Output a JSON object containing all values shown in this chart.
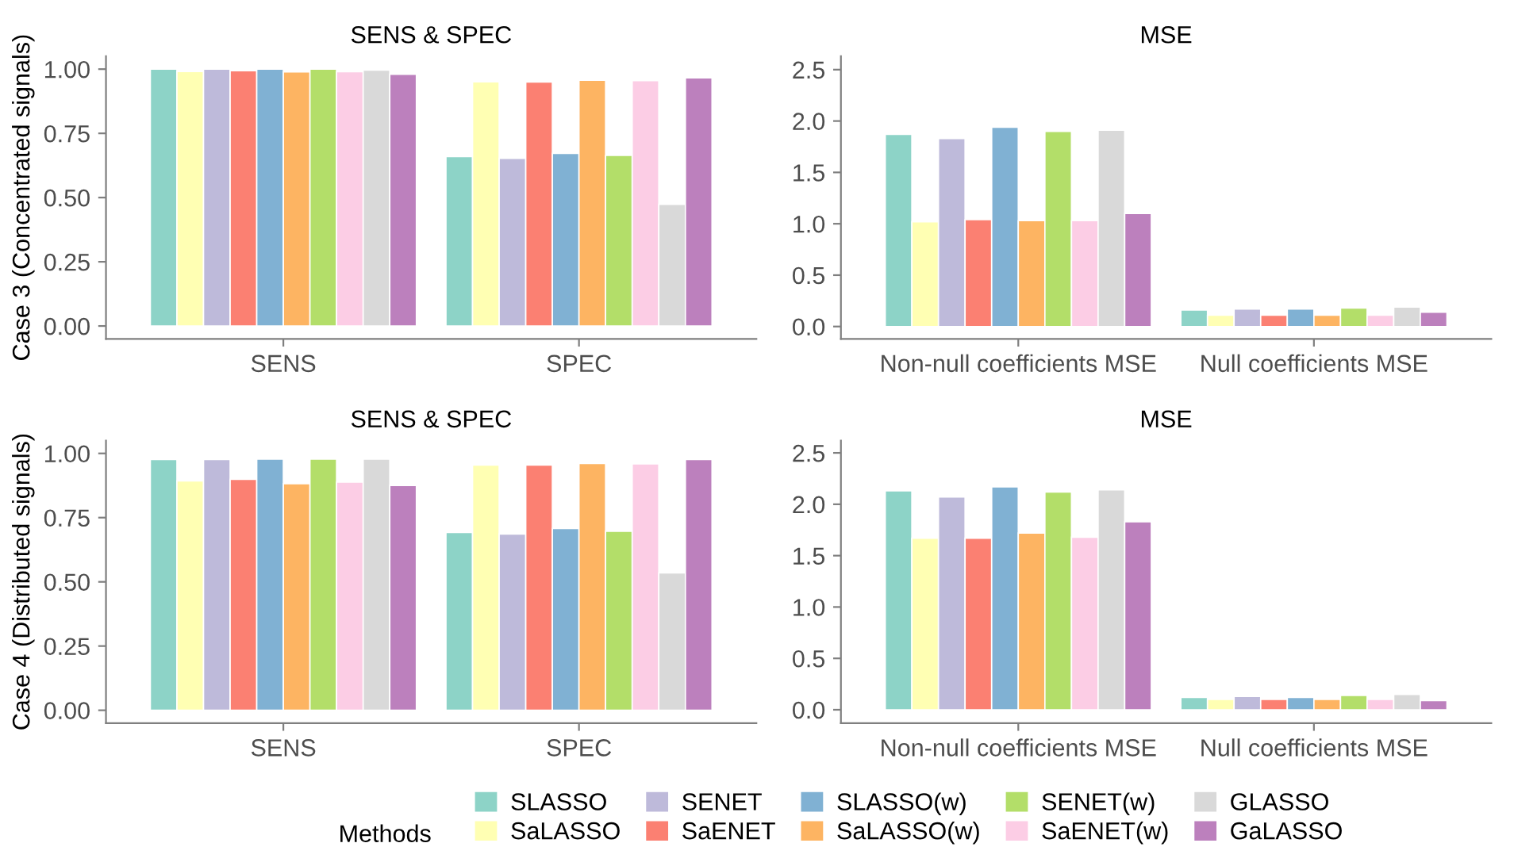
{
  "chart_data": [
    {
      "type": "bar",
      "title": "SENS & SPEC",
      "ylabel": "Case 3 (Concentrated signals)",
      "categories": [
        "SENS",
        "SPEC"
      ],
      "ylim": [
        -0.05,
        1.05
      ],
      "yticks": [
        {
          "value": 0,
          "label": "0.00"
        },
        {
          "value": 0.25,
          "label": "0.25"
        },
        {
          "value": 0.5,
          "label": "0.50"
        },
        {
          "value": 0.75,
          "label": "0.75"
        },
        {
          "value": 1,
          "label": "1.00"
        }
      ],
      "grid": false,
      "legend": "bottom",
      "legend_title": "Methods",
      "series": [
        {
          "name": "SLASSO",
          "color": "#8dd3c7",
          "values": [
            1.0,
            0.66
          ]
        },
        {
          "name": "SaLASSO",
          "color": "#ffffb3",
          "values": [
            0.991,
            0.951
          ]
        },
        {
          "name": "SENET",
          "color": "#bebada",
          "values": [
            1.0,
            0.653
          ]
        },
        {
          "name": "SaENET",
          "color": "#fb8072",
          "values": [
            0.994,
            0.95
          ]
        },
        {
          "name": "SLASSO(w)",
          "color": "#80b1d3",
          "values": [
            1.0,
            0.672
          ]
        },
        {
          "name": "SaLASSO(w)",
          "color": "#fdb462",
          "values": [
            0.989,
            0.957
          ]
        },
        {
          "name": "SENET(w)",
          "color": "#b3de69",
          "values": [
            1.0,
            0.664
          ]
        },
        {
          "name": "SaENET(w)",
          "color": "#fccde5",
          "values": [
            0.99,
            0.955
          ]
        },
        {
          "name": "GLASSO",
          "color": "#d9d9d9",
          "values": [
            0.996,
            0.474
          ]
        },
        {
          "name": "GaLASSO",
          "color": "#bc80bd",
          "values": [
            0.98,
            0.966
          ]
        }
      ]
    },
    {
      "type": "bar",
      "title": "MSE",
      "categories": [
        "Non-null coefficients MSE",
        "Null coefficients MSE"
      ],
      "ylim": [
        -0.12,
        2.63
      ],
      "yticks": [
        {
          "value": 0,
          "label": "0.0"
        },
        {
          "value": 0.5,
          "label": "0.5"
        },
        {
          "value": 1,
          "label": "1.0"
        },
        {
          "value": 1.5,
          "label": "1.5"
        },
        {
          "value": 2,
          "label": "2.0"
        },
        {
          "value": 2.5,
          "label": "2.5"
        }
      ],
      "grid": false,
      "series": [
        {
          "color": "#8dd3c7",
          "values": [
            1.87,
            0.16
          ]
        },
        {
          "color": "#ffffb3",
          "values": [
            1.02,
            0.11
          ]
        },
        {
          "color": "#bebada",
          "values": [
            1.83,
            0.17
          ]
        },
        {
          "color": "#fb8072",
          "values": [
            1.04,
            0.11
          ]
        },
        {
          "color": "#80b1d3",
          "values": [
            1.94,
            0.17
          ]
        },
        {
          "color": "#fdb462",
          "values": [
            1.03,
            0.11
          ]
        },
        {
          "color": "#b3de69",
          "values": [
            1.9,
            0.18
          ]
        },
        {
          "color": "#fccde5",
          "values": [
            1.03,
            0.11
          ]
        },
        {
          "color": "#d9d9d9",
          "values": [
            1.91,
            0.19
          ]
        },
        {
          "color": "#bc80bd",
          "values": [
            1.1,
            0.14
          ]
        }
      ]
    },
    {
      "type": "bar",
      "title": "SENS & SPEC",
      "ylabel": "Case 4 (Distributed signals)",
      "categories": [
        "SENS",
        "SPEC"
      ],
      "ylim": [
        -0.05,
        1.05
      ],
      "yticks": [
        {
          "value": 0,
          "label": "0.00"
        },
        {
          "value": 0.25,
          "label": "0.25"
        },
        {
          "value": 0.5,
          "label": "0.50"
        },
        {
          "value": 0.75,
          "label": "0.75"
        },
        {
          "value": 1,
          "label": "1.00"
        }
      ],
      "grid": false,
      "series": [
        {
          "color": "#8dd3c7",
          "values": [
            0.976,
            0.692
          ]
        },
        {
          "color": "#ffffb3",
          "values": [
            0.893,
            0.955
          ]
        },
        {
          "color": "#bebada",
          "values": [
            0.976,
            0.686
          ]
        },
        {
          "color": "#fb8072",
          "values": [
            0.899,
            0.955
          ]
        },
        {
          "color": "#80b1d3",
          "values": [
            0.978,
            0.708
          ]
        },
        {
          "color": "#fdb462",
          "values": [
            0.882,
            0.961
          ]
        },
        {
          "color": "#b3de69",
          "values": [
            0.978,
            0.697
          ]
        },
        {
          "color": "#fccde5",
          "values": [
            0.888,
            0.959
          ]
        },
        {
          "color": "#d9d9d9",
          "values": [
            0.978,
            0.535
          ]
        },
        {
          "color": "#bc80bd",
          "values": [
            0.875,
            0.976
          ]
        }
      ]
    },
    {
      "type": "bar",
      "title": "MSE",
      "categories": [
        "Non-null coefficients MSE",
        "Null coefficients MSE"
      ],
      "ylim": [
        -0.13,
        2.62
      ],
      "yticks": [
        {
          "value": 0,
          "label": "0.0"
        },
        {
          "value": 0.5,
          "label": "0.5"
        },
        {
          "value": 1,
          "label": "1.0"
        },
        {
          "value": 1.5,
          "label": "1.5"
        },
        {
          "value": 2,
          "label": "2.0"
        },
        {
          "value": 2.5,
          "label": "2.5"
        }
      ],
      "grid": false,
      "series": [
        {
          "color": "#8dd3c7",
          "values": [
            2.13,
            0.12
          ]
        },
        {
          "color": "#ffffb3",
          "values": [
            1.67,
            0.1
          ]
        },
        {
          "color": "#bebada",
          "values": [
            2.07,
            0.13
          ]
        },
        {
          "color": "#fb8072",
          "values": [
            1.67,
            0.1
          ]
        },
        {
          "color": "#80b1d3",
          "values": [
            2.17,
            0.12
          ]
        },
        {
          "color": "#fdb462",
          "values": [
            1.72,
            0.1
          ]
        },
        {
          "color": "#b3de69",
          "values": [
            2.12,
            0.14
          ]
        },
        {
          "color": "#fccde5",
          "values": [
            1.68,
            0.1
          ]
        },
        {
          "color": "#d9d9d9",
          "values": [
            2.14,
            0.15
          ]
        },
        {
          "color": "#bc80bd",
          "values": [
            1.83,
            0.09
          ]
        }
      ]
    }
  ]
}
